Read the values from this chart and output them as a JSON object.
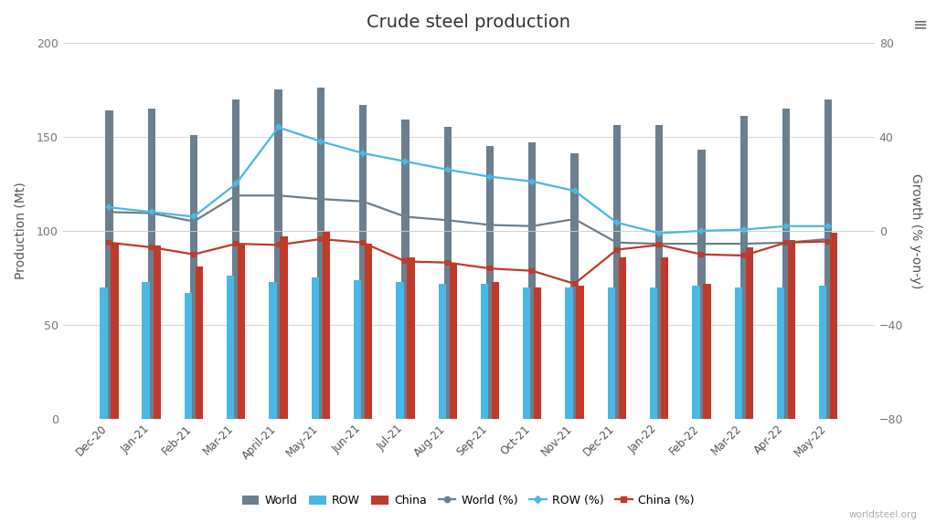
{
  "title": "Crude steel production",
  "categories": [
    "Dec-20",
    "Jan-21",
    "Feb-21",
    "Mar-21",
    "April-21",
    "May-21",
    "Jun-21",
    "Jul-21",
    "Aug-21",
    "Sep-21",
    "Oct-21",
    "Nov-21",
    "Dec-21",
    "Jan-22",
    "Feb-22",
    "Mar-22",
    "Apr-22",
    "May-22"
  ],
  "world_bar": [
    164,
    165,
    151,
    170,
    175,
    176,
    167,
    159,
    155,
    145,
    147,
    141,
    156,
    156,
    143,
    161,
    165,
    170
  ],
  "row_bar": [
    70,
    73,
    67,
    76,
    73,
    75,
    74,
    73,
    72,
    72,
    70,
    70,
    70,
    70,
    71,
    70,
    70,
    71
  ],
  "china_bar": [
    93,
    92,
    81,
    93,
    97,
    100,
    93,
    86,
    83,
    73,
    70,
    71,
    86,
    86,
    72,
    91,
    95,
    99
  ],
  "world_pct": [
    8.0,
    7.5,
    4.0,
    15.0,
    15.0,
    13.5,
    12.5,
    6.0,
    4.5,
    2.5,
    2.0,
    5.0,
    -5.0,
    -5.5,
    -5.5,
    -5.5,
    -5.0,
    -3.5
  ],
  "row_pct": [
    10.0,
    8.0,
    6.0,
    20.0,
    44.0,
    38.0,
    33.0,
    29.5,
    26.0,
    23.0,
    21.0,
    17.0,
    3.5,
    -1.0,
    0.0,
    0.5,
    2.0,
    2.0
  ],
  "china_pct": [
    -5.0,
    -7.0,
    -10.0,
    -5.5,
    -6.0,
    -3.5,
    -5.0,
    -13.0,
    -13.5,
    -16.0,
    -17.0,
    -22.5,
    -8.0,
    -6.0,
    -10.0,
    -10.5,
    -5.0,
    -4.5
  ],
  "background_color": "#ffffff",
  "world_bar_color": "#6b7f8e",
  "row_bar_color": "#4ab8e6",
  "china_bar_color": "#c0392b",
  "world_pct_color": "#6b7f8e",
  "row_pct_color": "#4ab8e6",
  "china_pct_color": "#c0392b",
  "ylabel_left": "Production (Mt)",
  "ylabel_right": "Growth (% y-on-y)",
  "ylim_left": [
    0,
    200
  ],
  "ylim_right": [
    -80,
    80
  ],
  "yticks_left": [
    0,
    50,
    100,
    150,
    200
  ],
  "yticks_right": [
    -80,
    -40,
    0,
    40,
    80
  ],
  "source": "worldsteel.org"
}
